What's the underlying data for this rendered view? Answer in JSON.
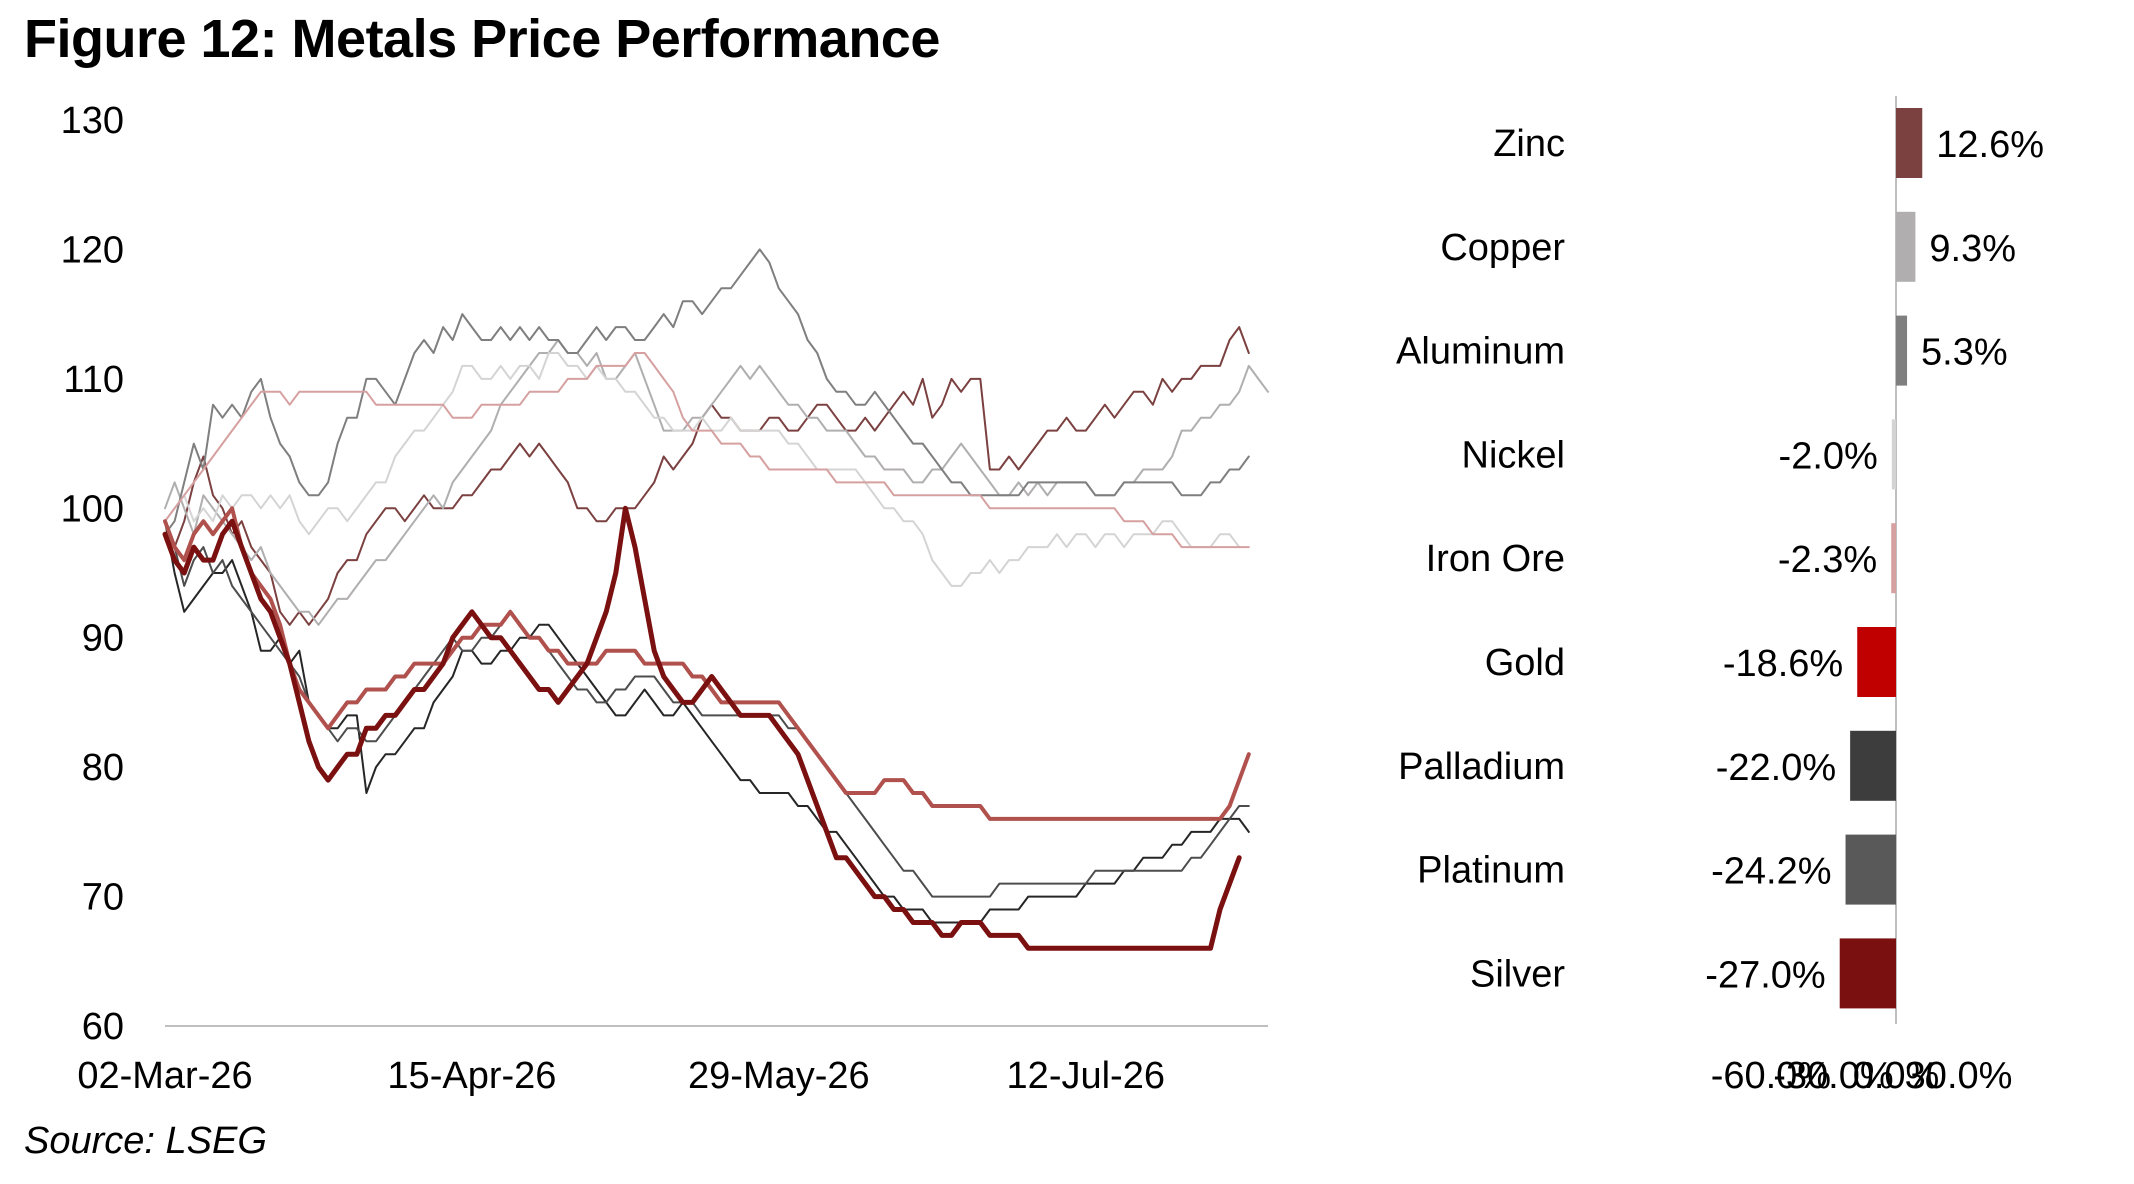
{
  "figure_title": "Figure 12: Metals Price Performance",
  "source": "Source: LSEG",
  "chart_data": [
    {
      "type": "line",
      "title": "",
      "xlabel": "",
      "ylabel": "",
      "ylim": [
        60,
        130
      ],
      "yticks": [
        "60",
        "70",
        "80",
        "90",
        "100",
        "110",
        "120",
        "130"
      ],
      "x_tick_labels": [
        "02-Mar-26",
        "15-Apr-26",
        "29-May-26",
        "12-Jul-26"
      ],
      "x_tick_positions": [
        0,
        32,
        64,
        96
      ],
      "legend": "none",
      "grid": false,
      "series": [
        {
          "color": "#7b4040",
          "width": 2,
          "values": [
            98,
            97,
            99,
            102,
            104,
            101,
            100,
            98,
            99,
            97,
            96,
            95,
            92,
            91,
            92,
            91,
            92,
            93,
            95,
            96,
            96,
            98,
            99,
            100,
            100,
            99,
            100,
            101,
            100,
            100,
            100,
            101,
            101,
            102,
            103,
            103,
            104,
            105,
            104,
            105,
            104,
            103,
            102,
            100,
            100,
            99,
            99,
            100,
            100,
            100,
            101,
            102,
            104,
            103,
            104,
            105,
            107,
            108,
            107,
            107,
            106,
            106,
            106,
            107,
            107,
            106,
            106,
            107,
            108,
            108,
            107,
            106,
            106,
            107,
            106,
            107,
            108,
            109,
            108,
            110,
            107,
            108,
            110,
            109,
            110,
            110,
            103,
            103,
            104,
            103,
            104,
            105,
            106,
            106,
            107,
            106,
            106,
            107,
            108,
            107,
            108,
            109,
            109,
            108,
            110,
            109,
            110,
            110,
            111,
            111,
            111,
            113,
            114,
            112
          ]
        },
        {
          "color": "#b0aeae",
          "width": 2,
          "values": [
            100,
            102,
            100,
            98,
            101,
            100,
            99,
            98,
            97,
            96,
            97,
            95,
            94,
            93,
            92,
            92,
            91,
            92,
            93,
            93,
            94,
            95,
            96,
            96,
            97,
            98,
            99,
            100,
            101,
            100,
            102,
            103,
            104,
            105,
            106,
            108,
            109,
            110,
            111,
            112,
            112,
            113,
            112,
            112,
            111,
            112,
            110,
            110,
            111,
            112,
            110,
            108,
            106,
            106,
            106,
            107,
            107,
            108,
            109,
            110,
            111,
            110,
            111,
            110,
            109,
            108,
            108,
            107,
            107,
            106,
            106,
            106,
            105,
            104,
            104,
            103,
            103,
            103,
            102,
            102,
            103,
            103,
            104,
            105,
            104,
            103,
            102,
            101,
            101,
            102,
            101,
            102,
            101,
            102,
            102,
            102,
            102,
            101,
            101,
            101,
            102,
            102,
            103,
            103,
            103,
            104,
            106,
            106,
            107,
            107,
            108,
            108,
            109,
            111,
            110,
            109
          ]
        },
        {
          "color": "#7f7f7f",
          "width": 2,
          "values": [
            98,
            99,
            102,
            105,
            103,
            108,
            107,
            108,
            107,
            109,
            110,
            107,
            105,
            104,
            102,
            101,
            101,
            102,
            105,
            107,
            107,
            110,
            110,
            109,
            108,
            110,
            112,
            113,
            112,
            114,
            113,
            115,
            114,
            113,
            113,
            114,
            113,
            114,
            113,
            114,
            113,
            113,
            112,
            112,
            113,
            114,
            113,
            114,
            114,
            113,
            113,
            114,
            115,
            114,
            116,
            116,
            115,
            116,
            117,
            117,
            118,
            119,
            120,
            119,
            117,
            116,
            115,
            113,
            112,
            110,
            109,
            109,
            108,
            108,
            109,
            108,
            107,
            106,
            105,
            105,
            104,
            103,
            102,
            102,
            101,
            101,
            101,
            101,
            101,
            101,
            102,
            102,
            102,
            102,
            102,
            102,
            102,
            101,
            101,
            101,
            102,
            102,
            102,
            102,
            102,
            102,
            101,
            101,
            101,
            102,
            102,
            103,
            103,
            104
          ]
        },
        {
          "color": "#d4d4d4",
          "width": 2,
          "values": [
            99,
            100,
            101,
            99,
            100,
            99,
            101,
            100,
            101,
            101,
            100,
            101,
            100,
            101,
            99,
            98,
            99,
            100,
            100,
            99,
            100,
            101,
            102,
            102,
            104,
            105,
            106,
            106,
            107,
            108,
            109,
            111,
            111,
            110,
            110,
            111,
            110,
            111,
            111,
            110,
            112,
            112,
            111,
            111,
            110,
            111,
            110,
            110,
            109,
            109,
            108,
            107,
            107,
            106,
            106,
            106,
            107,
            106,
            106,
            107,
            106,
            106,
            106,
            106,
            106,
            105,
            105,
            104,
            103,
            103,
            103,
            103,
            103,
            102,
            101,
            100,
            100,
            99,
            99,
            98,
            96,
            95,
            94,
            94,
            95,
            95,
            96,
            95,
            96,
            96,
            97,
            97,
            97,
            98,
            97,
            98,
            98,
            97,
            98,
            98,
            97,
            98,
            98,
            98,
            99,
            99,
            98,
            97,
            97,
            97,
            98,
            98,
            97
          ]
        },
        {
          "color": "#d6a0a0",
          "width": 2,
          "values": [
            99,
            100,
            101,
            102,
            103,
            104,
            105,
            106,
            107,
            108,
            109,
            109,
            109,
            108,
            109,
            109,
            109,
            109,
            109,
            109,
            109,
            109,
            108,
            108,
            108,
            108,
            108,
            108,
            108,
            108,
            107,
            107,
            107,
            108,
            108,
            108,
            108,
            108,
            109,
            109,
            109,
            109,
            110,
            110,
            110,
            111,
            111,
            111,
            111,
            112,
            112,
            111,
            110,
            109,
            107,
            106,
            106,
            106,
            105,
            105,
            105,
            104,
            104,
            103,
            103,
            103,
            103,
            103,
            103,
            103,
            102,
            102,
            102,
            102,
            102,
            102,
            101,
            101,
            101,
            101,
            101,
            101,
            101,
            101,
            101,
            101,
            100,
            100,
            100,
            100,
            100,
            100,
            100,
            100,
            100,
            100,
            100,
            100,
            100,
            100,
            99,
            99,
            99,
            98,
            98,
            98,
            97,
            97,
            97,
            97,
            97,
            97,
            97,
            97
          ]
        },
        {
          "color": "#262626",
          "width": 2,
          "values": [
            99,
            95,
            92,
            93,
            94,
            95,
            95,
            96,
            94,
            92,
            89,
            89,
            90,
            88,
            89,
            85,
            84,
            83,
            83,
            84,
            84,
            78,
            80,
            81,
            81,
            82,
            83,
            83,
            85,
            86,
            87,
            89,
            89,
            88,
            88,
            89,
            89,
            90,
            90,
            91,
            91,
            90,
            89,
            88,
            87,
            86,
            85,
            84,
            84,
            85,
            86,
            85,
            84,
            84,
            85,
            84,
            83,
            82,
            81,
            80,
            79,
            79,
            78,
            78,
            78,
            78,
            77,
            77,
            76,
            75,
            75,
            74,
            73,
            72,
            71,
            70,
            70,
            69,
            69,
            69,
            68,
            68,
            68,
            68,
            68,
            68,
            69,
            69,
            69,
            69,
            70,
            70,
            70,
            70,
            70,
            70,
            71,
            71,
            71,
            71,
            72,
            72,
            73,
            73,
            73,
            74,
            74,
            75,
            75,
            75,
            76,
            76,
            76,
            75
          ]
        },
        {
          "color": "#4d4d4d",
          "width": 2,
          "values": [
            98,
            97,
            94,
            96,
            97,
            95,
            96,
            94,
            93,
            92,
            91,
            90,
            89,
            88,
            87,
            85,
            84,
            83,
            82,
            83,
            83,
            82,
            82,
            83,
            84,
            85,
            86,
            87,
            88,
            89,
            90,
            89,
            89,
            90,
            90,
            91,
            92,
            91,
            90,
            90,
            89,
            88,
            87,
            86,
            86,
            85,
            85,
            86,
            86,
            87,
            87,
            87,
            86,
            85,
            85,
            85,
            84,
            84,
            84,
            84,
            84,
            84,
            84,
            84,
            84,
            83,
            83,
            82,
            81,
            80,
            79,
            78,
            77,
            76,
            75,
            74,
            73,
            72,
            72,
            71,
            70,
            70,
            70,
            70,
            70,
            70,
            70,
            71,
            71,
            71,
            71,
            71,
            71,
            71,
            71,
            71,
            71,
            72,
            72,
            72,
            72,
            72,
            72,
            72,
            72,
            72,
            72,
            73,
            73,
            74,
            75,
            76,
            77,
            77
          ]
        },
        {
          "color": "#b0514d",
          "width": 4,
          "values": [
            99,
            97,
            96,
            98,
            99,
            98,
            99,
            100,
            97,
            95,
            94,
            93,
            91,
            88,
            86,
            85,
            84,
            83,
            84,
            85,
            85,
            86,
            86,
            86,
            87,
            87,
            88,
            88,
            88,
            88,
            89,
            90,
            90,
            91,
            91,
            91,
            92,
            91,
            90,
            90,
            89,
            89,
            88,
            88,
            88,
            88,
            89,
            89,
            89,
            89,
            88,
            88,
            88,
            88,
            88,
            87,
            87,
            86,
            85,
            85,
            85,
            85,
            85,
            85,
            85,
            84,
            83,
            82,
            81,
            80,
            79,
            78,
            78,
            78,
            78,
            79,
            79,
            79,
            78,
            78,
            77,
            77,
            77,
            77,
            77,
            77,
            76,
            76,
            76,
            76,
            76,
            76,
            76,
            76,
            76,
            76,
            76,
            76,
            76,
            76,
            76,
            76,
            76,
            76,
            76,
            76,
            76,
            76,
            76,
            76,
            76,
            77,
            79,
            81
          ]
        },
        {
          "color": "#7a1010",
          "width": 5,
          "values": [
            98,
            96,
            95,
            97,
            96,
            96,
            98,
            99,
            97,
            95,
            93,
            92,
            90,
            88,
            85,
            82,
            80,
            79,
            80,
            81,
            81,
            83,
            83,
            84,
            84,
            85,
            86,
            86,
            87,
            88,
            90,
            91,
            92,
            91,
            90,
            90,
            89,
            88,
            87,
            86,
            86,
            85,
            86,
            87,
            88,
            90,
            92,
            95,
            100,
            97,
            93,
            89,
            87,
            86,
            85,
            85,
            86,
            87,
            86,
            85,
            84,
            84,
            84,
            84,
            83,
            82,
            81,
            79,
            77,
            75,
            73,
            73,
            72,
            71,
            70,
            70,
            69,
            69,
            68,
            68,
            68,
            67,
            67,
            68,
            68,
            68,
            67,
            67,
            67,
            67,
            66,
            66,
            66,
            66,
            66,
            66,
            66,
            66,
            66,
            66,
            66,
            66,
            66,
            66,
            66,
            66,
            66,
            66,
            66,
            66,
            69,
            71,
            73
          ]
        }
      ]
    },
    {
      "type": "bar",
      "orientation": "horizontal",
      "title": "",
      "xlabel": "",
      "ylabel": "",
      "xlim": [
        -60,
        30
      ],
      "xticks": [
        "-60.0%",
        "-30.0%",
        "0.0%",
        "30.0%"
      ],
      "legend": "none",
      "grid": false,
      "categories": [
        "Zinc",
        "Copper",
        "Aluminum",
        "Nickel",
        "Iron Ore",
        "Gold",
        "Palladium",
        "Platinum",
        "Silver"
      ],
      "values": [
        12.6,
        9.3,
        5.3,
        -2.0,
        -2.3,
        -18.6,
        -22.0,
        -24.2,
        -27.0
      ],
      "data_labels": [
        "12.6%",
        "9.3%",
        "5.3%",
        "-2.0%",
        "-2.3%",
        "-18.6%",
        "-22.0%",
        "-24.2%",
        "-27.0%"
      ],
      "colors": [
        "#7b4040",
        "#b0aeae",
        "#7f7f7f",
        "#d4d4d4",
        "#d6a0a0",
        "#c00000",
        "#3d3d3d",
        "#595959",
        "#7a1010"
      ]
    }
  ]
}
